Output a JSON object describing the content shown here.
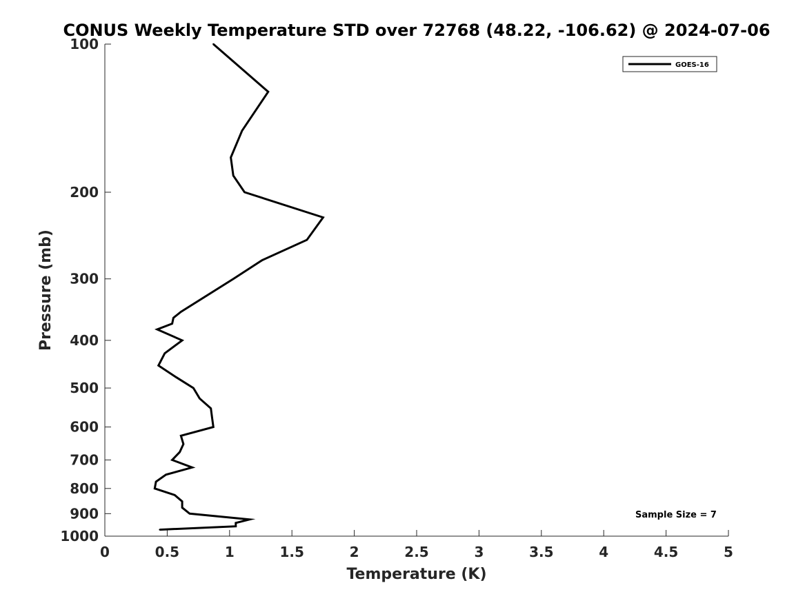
{
  "chart_data": {
    "type": "line",
    "title": "CONUS Weekly Temperature STD over 72768 (48.22, -106.62) @ 2024-07-06",
    "xlabel": "Temperature (K)",
    "ylabel": "Pressure (mb)",
    "xlim": [
      0,
      5
    ],
    "ylim": [
      100,
      1000
    ],
    "y_scale": "log",
    "y_reversed": true,
    "x_ticks": [
      "0",
      "0.5",
      "1",
      "1.5",
      "2",
      "2.5",
      "3",
      "3.5",
      "4",
      "4.5",
      "5"
    ],
    "y_ticks": [
      "100",
      "200",
      "300",
      "400",
      "500",
      "600",
      "700",
      "800",
      "900",
      "1000"
    ],
    "grid": false,
    "legend_position": "top-right",
    "series": [
      {
        "name": "GOES-16",
        "color": "#000000",
        "points": [
          {
            "x": 0.87,
            "y": 100
          },
          {
            "x": 1.31,
            "y": 125
          },
          {
            "x": 1.1,
            "y": 150
          },
          {
            "x": 1.01,
            "y": 170
          },
          {
            "x": 1.03,
            "y": 185
          },
          {
            "x": 1.12,
            "y": 200
          },
          {
            "x": 1.75,
            "y": 225
          },
          {
            "x": 1.62,
            "y": 250
          },
          {
            "x": 1.26,
            "y": 275
          },
          {
            "x": 1.03,
            "y": 300
          },
          {
            "x": 0.61,
            "y": 350
          },
          {
            "x": 0.55,
            "y": 360
          },
          {
            "x": 0.54,
            "y": 370
          },
          {
            "x": 0.42,
            "y": 380
          },
          {
            "x": 0.62,
            "y": 400
          },
          {
            "x": 0.48,
            "y": 425
          },
          {
            "x": 0.43,
            "y": 450
          },
          {
            "x": 0.57,
            "y": 475
          },
          {
            "x": 0.71,
            "y": 500
          },
          {
            "x": 0.76,
            "y": 525
          },
          {
            "x": 0.85,
            "y": 550
          },
          {
            "x": 0.86,
            "y": 575
          },
          {
            "x": 0.87,
            "y": 600
          },
          {
            "x": 0.61,
            "y": 625
          },
          {
            "x": 0.63,
            "y": 650
          },
          {
            "x": 0.6,
            "y": 675
          },
          {
            "x": 0.54,
            "y": 700
          },
          {
            "x": 0.7,
            "y": 725
          },
          {
            "x": 0.49,
            "y": 750
          },
          {
            "x": 0.41,
            "y": 775
          },
          {
            "x": 0.4,
            "y": 800
          },
          {
            "x": 0.56,
            "y": 825
          },
          {
            "x": 0.62,
            "y": 850
          },
          {
            "x": 0.62,
            "y": 875
          },
          {
            "x": 0.68,
            "y": 900
          },
          {
            "x": 1.16,
            "y": 925
          },
          {
            "x": 1.05,
            "y": 940
          },
          {
            "x": 1.05,
            "y": 955
          },
          {
            "x": 0.44,
            "y": 970
          }
        ]
      }
    ],
    "annotations": [
      "Sample Size = 7"
    ]
  }
}
